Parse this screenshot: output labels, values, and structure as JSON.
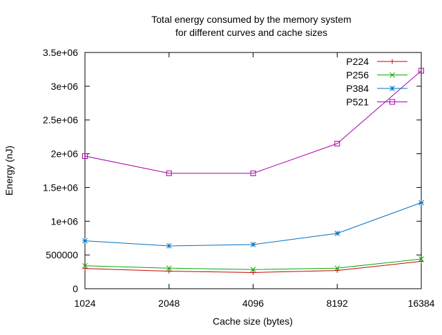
{
  "chart_data": {
    "type": "line",
    "title": "Total energy consumed by the memory system\nfor different curves and cache sizes",
    "xlabel": "Cache size (bytes)",
    "ylabel": "Energy (nJ)",
    "x_scale": "log2",
    "x": [
      1024,
      2048,
      4096,
      8192,
      16384
    ],
    "x_tick_labels": [
      "1024",
      "2048",
      "4096",
      "8192",
      "16384"
    ],
    "ylim": [
      0,
      3500000
    ],
    "y_ticks": [
      0,
      500000,
      1000000,
      1500000,
      2000000,
      2500000,
      3000000,
      3500000
    ],
    "y_tick_labels": [
      "0",
      "500000",
      "1e+06",
      "1.5e+06",
      "2e+06",
      "2.5e+06",
      "3e+06",
      "3.5e+06"
    ],
    "grid": false,
    "legend_position": "top-right",
    "series": [
      {
        "name": "P224",
        "color": "#cc0000",
        "marker": "plus",
        "values": [
          300000,
          260000,
          240000,
          270000,
          405000
        ]
      },
      {
        "name": "P256",
        "color": "#00aa00",
        "marker": "cross",
        "values": [
          340000,
          305000,
          285000,
          305000,
          440000
        ]
      },
      {
        "name": "P384",
        "color": "#0070c0",
        "marker": "star",
        "values": [
          710000,
          635000,
          655000,
          820000,
          1275000
        ]
      },
      {
        "name": "P521",
        "color": "#aa00aa",
        "marker": "square",
        "values": [
          1965000,
          1710000,
          1710000,
          2150000,
          3230000
        ]
      }
    ]
  }
}
